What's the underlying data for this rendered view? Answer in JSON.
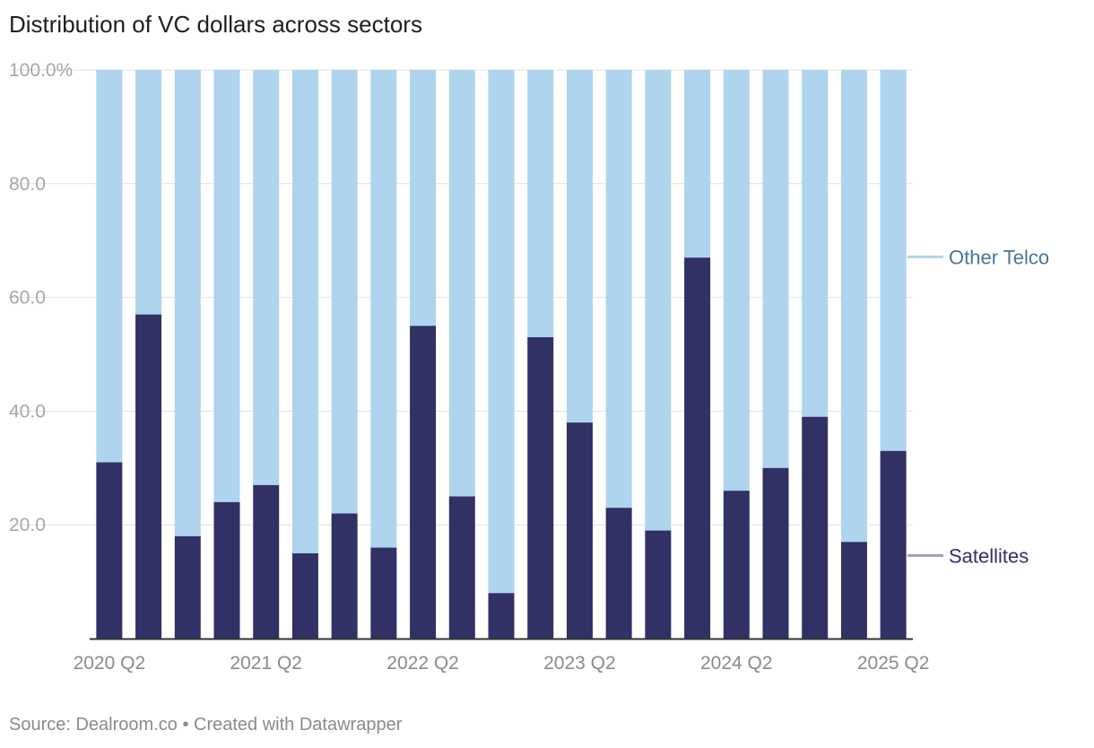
{
  "title": "Distribution of VC dollars across sectors",
  "footer": {
    "source": "Source: Dealroom.co",
    "separator": "•",
    "credit": "Created with Datawrapper"
  },
  "colors": {
    "satellites": "#313166",
    "other_telco": "#aed4ee",
    "grid": "#e2e2e2",
    "axis": "#333333",
    "label_other": "#4a7596",
    "label_satellites": "#313166",
    "connector_other": "#aed4ee",
    "connector_satellites": "#9f9fb8"
  },
  "chart_data": {
    "type": "bar",
    "stacked": true,
    "title": "Distribution of VC dollars across sectors",
    "categories": [
      "2020 Q2",
      "2020 Q3",
      "2020 Q4",
      "2021 Q1",
      "2021 Q2",
      "2021 Q3",
      "2021 Q4",
      "2022 Q1",
      "2022 Q2",
      "2022 Q3",
      "2022 Q4",
      "2023 Q1",
      "2023 Q2",
      "2023 Q3",
      "2023 Q4",
      "2024 Q1",
      "2024 Q2",
      "2024 Q3",
      "2024 Q4",
      "2025 Q1",
      "2025 Q2"
    ],
    "x_tick_labels": [
      "2020 Q2",
      "2021 Q2",
      "2022 Q2",
      "2023 Q2",
      "2024 Q2",
      "2025 Q2"
    ],
    "series": [
      {
        "name": "Satellites",
        "values": [
          31,
          57,
          18,
          24,
          27,
          15,
          22,
          16,
          55,
          25,
          8,
          53,
          38,
          23,
          19,
          67,
          26,
          30,
          39,
          17,
          33
        ]
      },
      {
        "name": "Other Telco",
        "values": [
          69,
          43,
          82,
          76,
          73,
          85,
          78,
          84,
          45,
          75,
          92,
          47,
          62,
          77,
          81,
          33,
          74,
          70,
          61,
          83,
          67
        ]
      }
    ],
    "y_ticks": [
      "20.0",
      "40.0",
      "60.0",
      "80.0",
      "100.0%"
    ],
    "y_tick_values": [
      20,
      40,
      60,
      80,
      100
    ],
    "ylim": [
      0,
      100
    ],
    "xlabel": "",
    "ylabel": "",
    "legend": "right, inline labels"
  }
}
